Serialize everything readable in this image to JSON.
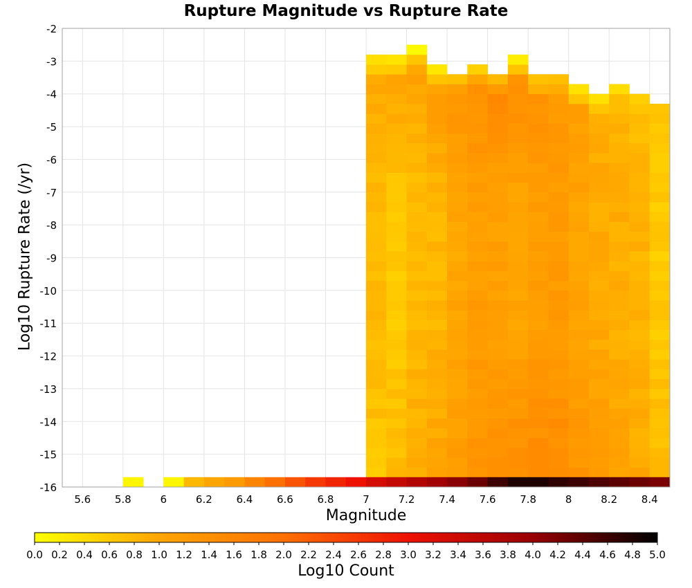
{
  "chart_data": {
    "type": "heatmap",
    "title": "Rupture Magnitude vs Rupture Rate",
    "xlabel": "Magnitude",
    "ylabel": "Log10 Rupture Rate (/yr)",
    "xlim": [
      5.5,
      8.5
    ],
    "ylim": [
      -16,
      -2
    ],
    "x_ticks": [
      "5.6",
      "5.8",
      "6",
      "6.2",
      "6.4",
      "6.6",
      "6.8",
      "7",
      "7.2",
      "7.4",
      "7.6",
      "7.8",
      "8",
      "8.2",
      "8.4"
    ],
    "y_ticks": [
      "-2",
      "-3",
      "-4",
      "-5",
      "-6",
      "-7",
      "-8",
      "-9",
      "-10",
      "-11",
      "-12",
      "-13",
      "-14",
      "-15",
      "-16"
    ],
    "x_bin_width": 0.1,
    "y_bin_width": 0.3,
    "colorbar": {
      "label": "Log10 Count",
      "range": [
        0,
        5
      ],
      "ticks": [
        "0.0",
        "0.2",
        "0.4",
        "0.6",
        "0.8",
        "1.0",
        "1.2",
        "1.4",
        "1.6",
        "1.8",
        "2.0",
        "2.2",
        "2.4",
        "2.6",
        "2.8",
        "3.0",
        "3.2",
        "3.4",
        "3.6",
        "3.8",
        "4.0",
        "4.2",
        "4.4",
        "4.6",
        "4.8",
        "5.0"
      ],
      "colors": [
        "#ffff00",
        "#ffa500",
        "#ff7000",
        "#ee1100",
        "#990000",
        "#000000"
      ]
    },
    "bottom_row_y": -15.85,
    "bottom_row": [
      {
        "x": 5.85,
        "v": 0.1
      },
      {
        "x": 6.05,
        "v": 0.1
      },
      {
        "x": 6.15,
        "v": 0.8
      },
      {
        "x": 6.25,
        "v": 1.0
      },
      {
        "x": 6.35,
        "v": 1.2
      },
      {
        "x": 6.45,
        "v": 1.6
      },
      {
        "x": 6.55,
        "v": 2.0
      },
      {
        "x": 6.65,
        "v": 2.3
      },
      {
        "x": 6.75,
        "v": 2.6
      },
      {
        "x": 6.85,
        "v": 2.8
      },
      {
        "x": 6.95,
        "v": 3.0
      },
      {
        "x": 7.05,
        "v": 3.3
      },
      {
        "x": 7.15,
        "v": 3.5
      },
      {
        "x": 7.25,
        "v": 3.7
      },
      {
        "x": 7.35,
        "v": 3.9
      },
      {
        "x": 7.45,
        "v": 4.1
      },
      {
        "x": 7.55,
        "v": 4.3
      },
      {
        "x": 7.65,
        "v": 4.6
      },
      {
        "x": 7.75,
        "v": 4.8
      },
      {
        "x": 7.85,
        "v": 4.8
      },
      {
        "x": 7.95,
        "v": 4.7
      },
      {
        "x": 8.05,
        "v": 4.6
      },
      {
        "x": 8.15,
        "v": 4.5
      },
      {
        "x": 8.25,
        "v": 4.4
      },
      {
        "x": 8.35,
        "v": 4.3
      },
      {
        "x": 8.45,
        "v": 4.2
      }
    ],
    "columns": [
      {
        "x": 7.05,
        "top": -3.0,
        "start": 0.4,
        "bump": 0.95,
        "mid": 0.75,
        "bot": 0.65
      },
      {
        "x": 7.15,
        "top": -3.0,
        "start": 0.35,
        "bump": 1.05,
        "mid": 0.6,
        "bot": 0.75
      },
      {
        "x": 7.25,
        "top": -2.7,
        "start": 0.2,
        "bump": 1.05,
        "mid": 0.75,
        "bot": 0.95
      },
      {
        "x": 7.35,
        "top": -3.3,
        "start": 0.3,
        "bump": 1.15,
        "mid": 0.8,
        "bot": 1.05
      },
      {
        "x": 7.45,
        "top": -3.6,
        "start": 0.8,
        "bump": 1.3,
        "mid": 1.0,
        "bot": 1.15
      },
      {
        "x": 7.55,
        "top": -3.3,
        "start": 0.5,
        "bump": 1.4,
        "mid": 1.15,
        "bot": 1.3
      },
      {
        "x": 7.65,
        "top": -3.6,
        "start": 0.85,
        "bump": 1.5,
        "mid": 1.1,
        "bot": 1.35
      },
      {
        "x": 7.75,
        "top": -3.0,
        "start": 0.2,
        "bump": 1.4,
        "mid": 1.05,
        "bot": 1.45
      },
      {
        "x": 7.85,
        "top": -3.6,
        "start": 0.7,
        "bump": 1.35,
        "mid": 1.15,
        "bot": 1.5
      },
      {
        "x": 7.95,
        "top": -3.6,
        "start": 0.75,
        "bump": 1.25,
        "mid": 1.2,
        "bot": 1.45
      },
      {
        "x": 8.05,
        "top": -3.9,
        "start": 0.3,
        "bump": 1.15,
        "mid": 1.05,
        "bot": 1.3
      },
      {
        "x": 8.15,
        "top": -4.2,
        "start": 0.4,
        "bump": 0.95,
        "mid": 0.95,
        "bot": 1.15
      },
      {
        "x": 8.25,
        "top": -3.9,
        "start": 0.5,
        "bump": 0.85,
        "mid": 0.9,
        "bot": 1.05
      },
      {
        "x": 8.35,
        "top": -4.2,
        "start": 0.6,
        "bump": 0.75,
        "mid": 0.85,
        "bot": 0.95
      },
      {
        "x": 8.45,
        "top": -4.5,
        "start": 0.6,
        "bump": 0.65,
        "mid": 0.6,
        "bot": 0.75
      }
    ],
    "gaps": [
      {
        "x": 7.05,
        "y": -7.05
      },
      {
        "x": 7.05,
        "y": -10.05
      },
      {
        "x": 7.05,
        "y": -10.95
      },
      {
        "x": 7.15,
        "y": -10.05
      },
      {
        "x": 7.15,
        "y": -11.25
      },
      {
        "x": 7.25,
        "y": -7.95
      },
      {
        "x": 7.35,
        "y": -3.45
      },
      {
        "x": 7.75,
        "y": -3.45
      },
      {
        "x": 7.75,
        "y": -3.15
      },
      {
        "x": 7.95,
        "y": -3.75
      },
      {
        "x": 8.05,
        "y": -3.75
      },
      {
        "x": 8.45,
        "y": -4.95
      },
      {
        "x": 8.45,
        "y": -5.55
      },
      {
        "x": 8.45,
        "y": -5.85
      },
      {
        "x": 8.45,
        "y": -6.15
      },
      {
        "x": 8.45,
        "y": -8.25
      }
    ]
  }
}
